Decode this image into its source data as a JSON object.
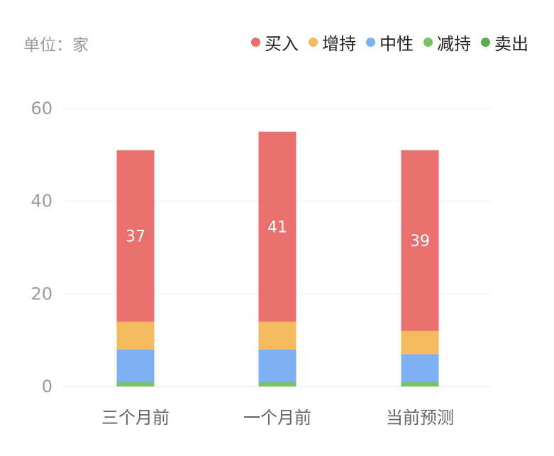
{
  "unit_label": "单位：家",
  "colors": {
    "buy": "#e8716f",
    "overweight": "#f4ba5f",
    "neutral": "#7eb0f3",
    "underweight": "#78c26a",
    "sell": "#58ad4c"
  },
  "chart_data": {
    "type": "bar",
    "stacked": true,
    "categories": [
      "三个月前",
      "一个月前",
      "当前预测"
    ],
    "series": [
      {
        "name": "卖出",
        "key": "sell",
        "values": [
          0,
          0,
          0
        ]
      },
      {
        "name": "减持",
        "key": "underweight",
        "values": [
          1,
          1,
          1
        ]
      },
      {
        "name": "中性",
        "key": "neutral",
        "values": [
          7,
          7,
          6
        ]
      },
      {
        "name": "增持",
        "key": "overweight",
        "values": [
          6,
          6,
          5
        ]
      },
      {
        "name": "买入",
        "key": "buy",
        "values": [
          37,
          41,
          39
        ],
        "show_labels": true
      }
    ],
    "legend_order": [
      "买入",
      "增持",
      "中性",
      "减持",
      "卖出"
    ],
    "legend_keys": [
      "buy",
      "overweight",
      "neutral",
      "underweight",
      "sell"
    ],
    "yticks": [
      0,
      20,
      40,
      60
    ],
    "ylim": [
      0,
      60
    ],
    "grid": true,
    "legend_position": "top-right"
  }
}
